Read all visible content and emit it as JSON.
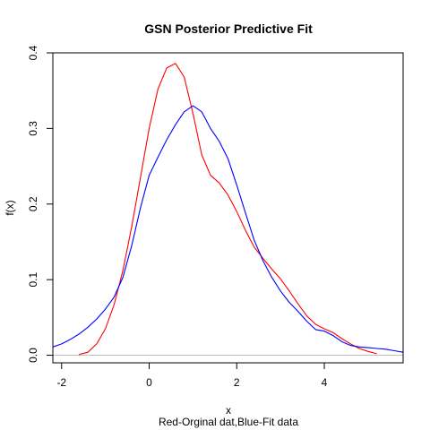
{
  "chart_data": {
    "type": "line",
    "title": "GSN Posterior Predictive Fit",
    "xlabel": "x",
    "ylabel": "f(x)",
    "subtitle": "Red-Orginal dat,Blue-Fit data",
    "xlim": [
      -2.2,
      5.8
    ],
    "ylim": [
      -0.01,
      0.4
    ],
    "x_ticks": [
      -2,
      0,
      2,
      4
    ],
    "x_tick_labels": [
      "-2",
      "0",
      "2",
      "4"
    ],
    "y_ticks": [
      0.0,
      0.1,
      0.2,
      0.3,
      0.4
    ],
    "y_tick_labels": [
      "0.0",
      "0.1",
      "0.2",
      "0.3",
      "0.4"
    ],
    "grid": false,
    "baseline": {
      "y": 0.0,
      "color": "#bebebe"
    },
    "series": [
      {
        "color": "#ff0000",
        "x": [
          -1.6,
          -1.4,
          -1.2,
          -1.0,
          -0.8,
          -0.6,
          -0.4,
          -0.2,
          0.0,
          0.2,
          0.4,
          0.6,
          0.8,
          1.0,
          1.2,
          1.4,
          1.6,
          1.8,
          2.0,
          2.2,
          2.4,
          2.6,
          2.8,
          3.0,
          3.2,
          3.4,
          3.6,
          3.8,
          4.0,
          4.2,
          4.4,
          4.6,
          4.8,
          5.0,
          5.2
        ],
        "y": [
          0.001,
          0.004,
          0.015,
          0.035,
          0.067,
          0.112,
          0.17,
          0.235,
          0.3,
          0.352,
          0.38,
          0.386,
          0.368,
          0.32,
          0.265,
          0.238,
          0.228,
          0.212,
          0.19,
          0.165,
          0.143,
          0.128,
          0.114,
          0.101,
          0.085,
          0.068,
          0.052,
          0.041,
          0.035,
          0.03,
          0.022,
          0.015,
          0.009,
          0.005,
          0.002
        ]
      },
      {
        "color": "#0000ff",
        "x": [
          -2.2,
          -2.0,
          -1.8,
          -1.6,
          -1.4,
          -1.2,
          -1.0,
          -0.8,
          -0.6,
          -0.4,
          -0.2,
          0.0,
          0.2,
          0.4,
          0.6,
          0.8,
          1.0,
          1.2,
          1.4,
          1.6,
          1.8,
          2.0,
          2.2,
          2.4,
          2.6,
          2.8,
          3.0,
          3.2,
          3.4,
          3.6,
          3.8,
          4.0,
          4.2,
          4.4,
          4.6,
          4.8,
          5.0,
          5.2,
          5.4,
          5.6,
          5.8
        ],
        "y": [
          0.011,
          0.015,
          0.021,
          0.028,
          0.037,
          0.048,
          0.061,
          0.077,
          0.103,
          0.145,
          0.195,
          0.238,
          0.262,
          0.285,
          0.305,
          0.322,
          0.33,
          0.322,
          0.3,
          0.283,
          0.26,
          0.225,
          0.188,
          0.152,
          0.125,
          0.103,
          0.085,
          0.07,
          0.058,
          0.045,
          0.034,
          0.032,
          0.026,
          0.018,
          0.013,
          0.011,
          0.01,
          0.009,
          0.008,
          0.006,
          0.004
        ]
      }
    ]
  }
}
